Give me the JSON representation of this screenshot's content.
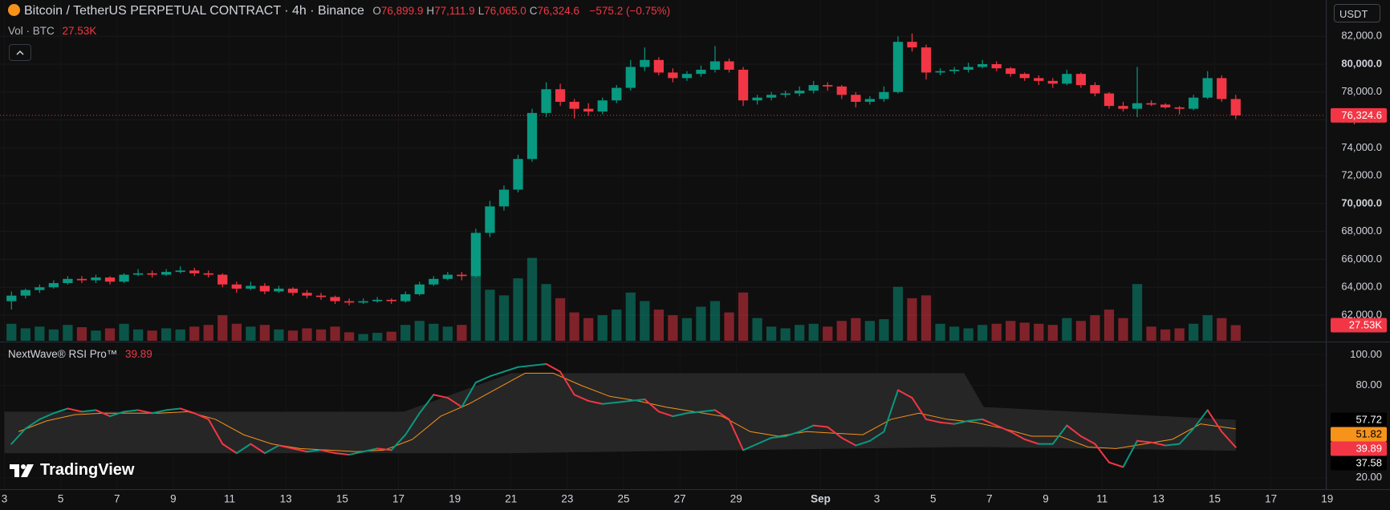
{
  "header": {
    "symbol": "Bitcoin / TetherUS PERPETUAL CONTRACT · 4h · Binance",
    "ohlc": [
      {
        "key": "O",
        "value": "76,899.9"
      },
      {
        "key": "H",
        "value": "77,111.9"
      },
      {
        "key": "L",
        "value": "76,065.0"
      },
      {
        "key": "C",
        "value": "76,324.6"
      }
    ],
    "change": "−575.2 (−0.75%)",
    "volume_label": "Vol · BTC",
    "volume_value": "27.53K",
    "currency": "USDT",
    "last_price": "76,324.6",
    "logo": "TradingView"
  },
  "chart_data": {
    "type": "candlestick",
    "up_color": "#089981",
    "down_color": "#f23645",
    "xlim": [
      -0.157,
      46.95
    ],
    "ylim": [
      60160,
      84600
    ],
    "xticks": [
      {
        "value": 0,
        "label": "3"
      },
      {
        "value": 2,
        "label": "5"
      },
      {
        "value": 4,
        "label": "7"
      },
      {
        "value": 6,
        "label": "9"
      },
      {
        "value": 8,
        "label": "11"
      },
      {
        "value": 10,
        "label": "13"
      },
      {
        "value": 12,
        "label": "15"
      },
      {
        "value": 14,
        "label": "17"
      },
      {
        "value": 16,
        "label": "19"
      },
      {
        "value": 18,
        "label": "21"
      },
      {
        "value": 20,
        "label": "23"
      },
      {
        "value": 22,
        "label": "25"
      },
      {
        "value": 24,
        "label": "27"
      },
      {
        "value": 26,
        "label": "29"
      },
      {
        "value": 29,
        "label": "Sep",
        "bold": true
      },
      {
        "value": 31,
        "label": "3"
      },
      {
        "value": 33,
        "label": "5"
      },
      {
        "value": 35,
        "label": "7"
      },
      {
        "value": 37,
        "label": "9"
      },
      {
        "value": 39,
        "label": "11"
      },
      {
        "value": 41,
        "label": "13"
      },
      {
        "value": 43,
        "label": "15"
      },
      {
        "value": 45,
        "label": "17"
      },
      {
        "value": 47,
        "label": "19"
      }
    ],
    "yticks": [
      {
        "value": 82000,
        "label": "82,000.0"
      },
      {
        "value": 80000,
        "label": "80,000.0",
        "bold": true
      },
      {
        "value": 78000,
        "label": "78,000.0"
      },
      {
        "value": 76000,
        "label": "76,000.0"
      },
      {
        "value": 74000,
        "label": "74,000.0"
      },
      {
        "value": 72000,
        "label": "72,000.0"
      },
      {
        "value": 70000,
        "label": "70,000.0",
        "bold": true
      },
      {
        "value": 68000,
        "label": "68,000.0"
      },
      {
        "value": 66000,
        "label": "66,000.0"
      },
      {
        "value": 64000,
        "label": "64,000.0"
      },
      {
        "value": 62000,
        "label": "62,000.0"
      }
    ],
    "x": [
      0.25,
      0.75,
      1.25,
      1.75,
      2.25,
      2.75,
      3.25,
      3.75,
      4.25,
      4.75,
      5.25,
      5.75,
      6.25,
      6.75,
      7.25,
      7.75,
      8.25,
      8.75,
      9.25,
      9.75,
      10.25,
      10.75,
      11.25,
      11.75,
      12.25,
      12.75,
      13.25,
      13.75,
      14.25,
      14.75,
      15.25,
      15.75,
      16.25,
      16.75,
      17.25,
      17.75,
      18.25,
      18.75,
      19.25,
      19.75,
      20.25,
      20.75,
      21.25,
      21.75,
      22.25,
      22.75,
      23.25,
      23.75,
      24.25,
      24.75,
      25.25,
      25.75,
      26.25,
      26.75,
      27.25,
      27.75,
      28.25,
      28.75,
      29.25,
      29.75,
      30.25,
      30.75,
      31.25,
      31.75,
      32.25,
      32.75,
      33.25,
      33.75,
      34.25,
      34.75,
      35.25,
      35.75,
      36.25,
      36.75,
      37.25,
      37.75,
      38.25,
      38.75,
      39.25,
      39.75,
      40.25,
      40.75,
      41.25,
      41.75,
      42.25,
      42.75,
      43.25,
      43.75
    ],
    "candles": [
      [
        63000,
        63700,
        62400,
        63400
      ],
      [
        63400,
        63900,
        63200,
        63800
      ],
      [
        63800,
        64200,
        63600,
        64000
      ],
      [
        64000,
        64500,
        63900,
        64300
      ],
      [
        64300,
        64800,
        64200,
        64600
      ],
      [
        64600,
        64800,
        64300,
        64500
      ],
      [
        64500,
        64900,
        64300,
        64700
      ],
      [
        64700,
        64800,
        64200,
        64400
      ],
      [
        64400,
        65000,
        64300,
        64900
      ],
      [
        64900,
        65300,
        64800,
        65000
      ],
      [
        65000,
        65200,
        64700,
        64900
      ],
      [
        64900,
        65300,
        64800,
        65100
      ],
      [
        65100,
        65500,
        65000,
        65200
      ],
      [
        65200,
        65400,
        64800,
        65000
      ],
      [
        65000,
        65200,
        64700,
        64900
      ],
      [
        64900,
        65000,
        64000,
        64200
      ],
      [
        64200,
        64400,
        63600,
        63900
      ],
      [
        63900,
        64400,
        63800,
        64100
      ],
      [
        64100,
        64300,
        63500,
        63700
      ],
      [
        63700,
        64100,
        63600,
        63900
      ],
      [
        63900,
        64000,
        63400,
        63600
      ],
      [
        63600,
        63800,
        63200,
        63400
      ],
      [
        63400,
        63600,
        63100,
        63300
      ],
      [
        63300,
        63400,
        62800,
        63000
      ],
      [
        63000,
        63200,
        62700,
        62900
      ],
      [
        62900,
        63200,
        62800,
        63000
      ],
      [
        63000,
        63300,
        62900,
        63100
      ],
      [
        63100,
        63200,
        62800,
        63000
      ],
      [
        63000,
        63700,
        62900,
        63500
      ],
      [
        63500,
        64400,
        63400,
        64200
      ],
      [
        64200,
        64800,
        64100,
        64600
      ],
      [
        64600,
        65100,
        64500,
        64900
      ],
      [
        64900,
        65100,
        64500,
        64800
      ],
      [
        64800,
        68200,
        64700,
        67900
      ],
      [
        67900,
        70200,
        67600,
        69800
      ],
      [
        69800,
        71300,
        69500,
        71000
      ],
      [
        71000,
        73500,
        70800,
        73200
      ],
      [
        73200,
        76800,
        73000,
        76500
      ],
      [
        76500,
        78700,
        76200,
        78200
      ],
      [
        78200,
        78600,
        77000,
        77300
      ],
      [
        77300,
        77500,
        76100,
        76800
      ],
      [
        76800,
        77200,
        76300,
        76600
      ],
      [
        76600,
        77600,
        76400,
        77400
      ],
      [
        77400,
        78500,
        77200,
        78300
      ],
      [
        78300,
        80300,
        78100,
        79800
      ],
      [
        79800,
        81200,
        79500,
        80300
      ],
      [
        80300,
        80500,
        79200,
        79400
      ],
      [
        79400,
        79700,
        78700,
        79000
      ],
      [
        79000,
        79500,
        78800,
        79300
      ],
      [
        79300,
        79900,
        79100,
        79600
      ],
      [
        79600,
        81300,
        79400,
        80200
      ],
      [
        80200,
        80400,
        79400,
        79600
      ],
      [
        79600,
        79800,
        77000,
        77400
      ],
      [
        77400,
        77800,
        77100,
        77600
      ],
      [
        77600,
        78000,
        77400,
        77800
      ],
      [
        77800,
        78100,
        77600,
        77900
      ],
      [
        77900,
        78400,
        77700,
        78100
      ],
      [
        78100,
        78800,
        77900,
        78500
      ],
      [
        78500,
        78700,
        78100,
        78400
      ],
      [
        78400,
        78500,
        77500,
        77800
      ],
      [
        77800,
        78000,
        76900,
        77300
      ],
      [
        77300,
        77700,
        77100,
        77500
      ],
      [
        77500,
        78400,
        77300,
        78000
      ],
      [
        78000,
        82000,
        77900,
        81600
      ],
      [
        81600,
        82200,
        80900,
        81200
      ],
      [
        81200,
        81400,
        78900,
        79400
      ],
      [
        79400,
        79700,
        79200,
        79500
      ],
      [
        79500,
        79800,
        79300,
        79600
      ],
      [
        79600,
        80100,
        79400,
        79800
      ],
      [
        79800,
        80300,
        79700,
        80000
      ],
      [
        80000,
        80200,
        79500,
        79700
      ],
      [
        79700,
        79800,
        79100,
        79300
      ],
      [
        79300,
        79400,
        78800,
        79000
      ],
      [
        79000,
        79200,
        78500,
        78800
      ],
      [
        78800,
        79000,
        78300,
        78600
      ],
      [
        78600,
        79600,
        78500,
        79300
      ],
      [
        79300,
        79400,
        78300,
        78500
      ],
      [
        78500,
        78700,
        77700,
        77900
      ],
      [
        77900,
        78000,
        76800,
        77000
      ],
      [
        77000,
        77300,
        76600,
        76800
      ],
      [
        76800,
        79800,
        76200,
        77200
      ],
      [
        77200,
        77400,
        77000,
        77100
      ],
      [
        77100,
        77200,
        76800,
        76900
      ],
      [
        76900,
        77000,
        76400,
        76800
      ],
      [
        76800,
        77800,
        76700,
        77600
      ],
      [
        77600,
        79500,
        77500,
        79000
      ],
      [
        79000,
        79200,
        77300,
        77500
      ],
      [
        77500,
        77800,
        76065,
        76324.6
      ]
    ],
    "volume": {
      "ylim": [
        0,
        600000
      ],
      "values": [
        30000,
        22000,
        25000,
        20000,
        28000,
        24000,
        18000,
        22000,
        30000,
        20000,
        18000,
        22000,
        20000,
        25000,
        28000,
        45000,
        30000,
        25000,
        28000,
        20000,
        18000,
        22000,
        20000,
        25000,
        15000,
        12000,
        14000,
        16000,
        28000,
        35000,
        30000,
        25000,
        28000,
        120000,
        90000,
        80000,
        110000,
        146000,
        100000,
        75000,
        50000,
        40000,
        45000,
        55000,
        85000,
        70000,
        55000,
        45000,
        40000,
        60000,
        70000,
        50000,
        85000,
        40000,
        25000,
        22000,
        28000,
        30000,
        25000,
        35000,
        40000,
        35000,
        38000,
        95000,
        75000,
        80000,
        30000,
        25000,
        22000,
        28000,
        30000,
        35000,
        32000,
        30000,
        28000,
        40000,
        35000,
        45000,
        55000,
        40000,
        100000,
        25000,
        20000,
        22000,
        30000,
        45000,
        40000,
        27530
      ]
    },
    "indicator": {
      "type": "line",
      "title": "NextWave® RSI Pro™",
      "ylim": [
        12.6,
        107.5
      ],
      "yticks": [
        {
          "value": 100,
          "label": "100.00"
        },
        {
          "value": 80,
          "label": "80.00"
        },
        {
          "value": 20,
          "label": "20.00"
        }
      ],
      "rsi": {
        "up_color": "#089981",
        "down_color": "#f23645",
        "values": [
          42,
          52,
          58,
          62,
          65,
          63,
          64,
          60,
          63,
          64,
          62,
          64,
          65,
          62,
          58,
          42,
          36,
          42,
          36,
          41,
          39,
          37,
          38,
          36,
          35,
          37,
          39,
          38,
          48,
          62,
          74,
          72,
          66,
          82,
          86,
          89,
          92,
          93,
          94,
          89,
          74,
          70,
          68,
          69,
          70,
          71,
          63,
          60,
          62,
          63,
          64,
          58,
          38,
          42,
          46,
          47,
          50,
          54,
          53,
          46,
          41,
          44,
          50,
          77,
          72,
          58,
          56,
          55,
          57,
          58,
          54,
          50,
          45,
          42,
          42,
          54,
          47,
          42,
          30,
          27,
          44,
          43,
          41,
          42,
          52,
          64,
          50,
          39.89
        ]
      },
      "signal": {
        "color": "#f7931a",
        "x": [
          0.5,
          1.5,
          2.5,
          3.5,
          4.5,
          5.5,
          6.5,
          7.5,
          8.5,
          9.5,
          10.5,
          11.5,
          12.5,
          13.5,
          14.5,
          15.5,
          16.5,
          17.5,
          18.5,
          19.5,
          20.5,
          21.5,
          22.5,
          23.5,
          24.5,
          25.5,
          26.5,
          27.5,
          28.5,
          29.5,
          30.5,
          31.5,
          32.5,
          33.5,
          34.5,
          35.5,
          36.5,
          37.5,
          38.5,
          39.5,
          40.5,
          41.5,
          42.5,
          43.75
        ],
        "values": [
          50,
          57,
          61,
          62,
          62,
          62,
          63,
          58,
          48,
          42,
          39,
          38,
          37,
          38,
          45,
          60,
          68,
          78,
          88,
          88,
          80,
          73,
          70,
          66,
          63,
          60,
          50,
          47,
          50,
          49,
          48,
          58,
          62,
          58,
          56,
          52,
          47,
          47,
          40,
          39,
          42,
          45,
          55,
          51.82
        ]
      },
      "band": {
        "color": "#262626",
        "x": [
          0,
          14.2,
          18,
          34.1,
          34.8,
          43.75
        ],
        "upper": [
          63,
          63,
          88,
          88,
          66,
          57.72
        ],
        "lower": [
          36,
          36,
          36,
          40,
          40,
          37.58
        ]
      }
    }
  }
}
